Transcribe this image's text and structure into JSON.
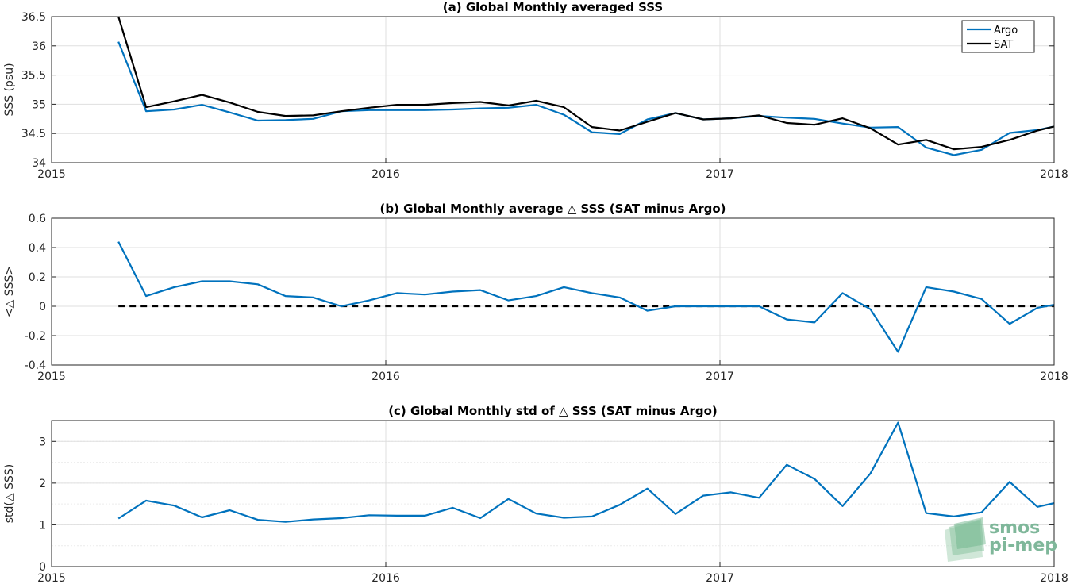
{
  "colors": {
    "argo": "#0072BD",
    "sat": "#000000",
    "grid": "#dfdfdf",
    "axis": "#262626",
    "zero_line": "#000000"
  },
  "watermark": {
    "line1": "smos",
    "line2": "pi-mep",
    "color": "#7fb79a"
  },
  "chart_data": [
    {
      "id": "a",
      "type": "line",
      "title": "(a) Global Monthly averaged SSS",
      "xlabel": "",
      "ylabel": "SSS (psu)",
      "xlim": [
        2015,
        2018
      ],
      "ylim": [
        34,
        36.5
      ],
      "xticks": [
        2015,
        2016,
        2017,
        2018
      ],
      "xtick_labels": [
        "2015",
        "2016",
        "2017",
        "2018"
      ],
      "yticks": [
        34,
        34.5,
        35,
        35.5,
        36,
        36.5
      ],
      "ytick_labels": [
        "34",
        "34.5",
        "35",
        "35.5",
        "36",
        "36.5"
      ],
      "grid": true,
      "legend": "top-right",
      "series": [
        {
          "name": "Argo",
          "color": "#0072BD",
          "x": [
            2015.2,
            2015.283,
            2015.367,
            2015.45,
            2015.533,
            2015.617,
            2015.7,
            2015.783,
            2015.867,
            2015.95,
            2016.033,
            2016.117,
            2016.2,
            2016.283,
            2016.367,
            2016.45,
            2016.533,
            2016.617,
            2016.7,
            2016.783,
            2016.867,
            2016.95,
            2017.033,
            2017.117,
            2017.2,
            2017.283,
            2017.367,
            2017.45,
            2017.533,
            2017.617,
            2017.7,
            2017.783,
            2017.867,
            2017.95,
            2018.0
          ],
          "values": [
            36.07,
            34.88,
            34.91,
            34.99,
            34.86,
            34.72,
            34.73,
            34.75,
            34.88,
            34.9,
            34.9,
            34.9,
            34.91,
            34.93,
            34.94,
            34.99,
            34.82,
            34.52,
            34.49,
            34.74,
            34.85,
            34.74,
            34.76,
            34.8,
            34.77,
            34.75,
            34.67,
            34.6,
            34.61,
            34.26,
            34.13,
            34.22,
            34.51,
            34.56,
            34.62
          ]
        },
        {
          "name": "SAT",
          "color": "#000000",
          "x": [
            2015.2,
            2015.283,
            2015.367,
            2015.45,
            2015.533,
            2015.617,
            2015.7,
            2015.783,
            2015.867,
            2015.95,
            2016.033,
            2016.117,
            2016.2,
            2016.283,
            2016.367,
            2016.45,
            2016.533,
            2016.617,
            2016.7,
            2016.783,
            2016.867,
            2016.95,
            2017.033,
            2017.117,
            2017.2,
            2017.283,
            2017.367,
            2017.45,
            2017.533,
            2017.617,
            2017.7,
            2017.783,
            2017.867,
            2017.95,
            2018.0
          ],
          "values": [
            36.5,
            34.95,
            35.05,
            35.16,
            35.03,
            34.87,
            34.8,
            34.81,
            34.88,
            34.94,
            34.99,
            34.99,
            35.02,
            35.04,
            34.98,
            35.06,
            34.95,
            34.61,
            34.55,
            34.7,
            34.85,
            34.74,
            34.76,
            34.81,
            34.68,
            34.65,
            34.76,
            34.59,
            34.31,
            34.39,
            34.23,
            34.27,
            34.39,
            34.55,
            34.62
          ]
        }
      ]
    },
    {
      "id": "b",
      "type": "line",
      "title": "(b) Global Monthly average △ SSS (SAT minus Argo)",
      "xlabel": "",
      "ylabel": "<△ SSS>",
      "xlim": [
        2015,
        2018
      ],
      "ylim": [
        -0.4,
        0.6
      ],
      "xticks": [
        2015,
        2016,
        2017,
        2018
      ],
      "xtick_labels": [
        "2015",
        "2016",
        "2017",
        "2018"
      ],
      "yticks": [
        -0.4,
        -0.2,
        0,
        0.2,
        0.4,
        0.6
      ],
      "ytick_labels": [
        "-0.4",
        "-0.2",
        "0",
        "0.2",
        "0.4",
        "0.6"
      ],
      "grid": true,
      "reference_line": {
        "y": 0,
        "x": [
          2015.2,
          2018.0
        ],
        "style": "dashed"
      },
      "series": [
        {
          "color": "#0072BD",
          "x": [
            2015.2,
            2015.283,
            2015.367,
            2015.45,
            2015.533,
            2015.617,
            2015.7,
            2015.783,
            2015.867,
            2015.95,
            2016.033,
            2016.117,
            2016.2,
            2016.283,
            2016.367,
            2016.45,
            2016.533,
            2016.617,
            2016.7,
            2016.783,
            2016.867,
            2016.95,
            2017.033,
            2017.117,
            2017.2,
            2017.283,
            2017.367,
            2017.45,
            2017.533,
            2017.617,
            2017.7,
            2017.783,
            2017.867,
            2017.95,
            2018.0
          ],
          "values": [
            0.44,
            0.07,
            0.13,
            0.17,
            0.17,
            0.15,
            0.07,
            0.06,
            0.0,
            0.04,
            0.09,
            0.08,
            0.1,
            0.11,
            0.04,
            0.07,
            0.13,
            0.09,
            0.06,
            -0.03,
            0.0,
            0.0,
            0.0,
            0.0,
            -0.09,
            -0.11,
            0.09,
            -0.02,
            -0.31,
            0.13,
            0.1,
            0.05,
            -0.12,
            -0.01,
            0.01
          ]
        }
      ]
    },
    {
      "id": "c",
      "type": "line",
      "title": "(c) Global Monthly std of △ SSS (SAT minus Argo)",
      "xlabel": "",
      "ylabel": "std(△ SSS)",
      "xlim": [
        2015,
        2018
      ],
      "ylim": [
        0,
        3.5
      ],
      "xticks": [
        2015,
        2016,
        2017,
        2018
      ],
      "xtick_labels": [
        "2015",
        "2016",
        "2017",
        "2018"
      ],
      "yticks": [
        0,
        1,
        2,
        3
      ],
      "ytick_labels": [
        "0",
        "1",
        "2",
        "3"
      ],
      "minor_y_grid_step": 0.5,
      "grid": true,
      "series": [
        {
          "color": "#0072BD",
          "x": [
            2015.2,
            2015.283,
            2015.367,
            2015.45,
            2015.533,
            2015.617,
            2015.7,
            2015.783,
            2015.867,
            2015.95,
            2016.033,
            2016.117,
            2016.2,
            2016.283,
            2016.367,
            2016.45,
            2016.533,
            2016.617,
            2016.7,
            2016.783,
            2016.867,
            2016.95,
            2017.033,
            2017.117,
            2017.2,
            2017.283,
            2017.367,
            2017.45,
            2017.533,
            2017.617,
            2017.7,
            2017.783,
            2017.867,
            2017.95,
            2018.0
          ],
          "values": [
            1.15,
            1.58,
            1.46,
            1.18,
            1.35,
            1.12,
            1.07,
            1.13,
            1.16,
            1.23,
            1.22,
            1.22,
            1.41,
            1.16,
            1.62,
            1.27,
            1.17,
            1.2,
            1.48,
            1.87,
            1.26,
            1.7,
            1.78,
            1.65,
            2.44,
            2.1,
            1.45,
            2.23,
            3.45,
            1.28,
            1.2,
            1.3,
            2.03,
            1.43,
            1.52
          ]
        }
      ]
    }
  ]
}
